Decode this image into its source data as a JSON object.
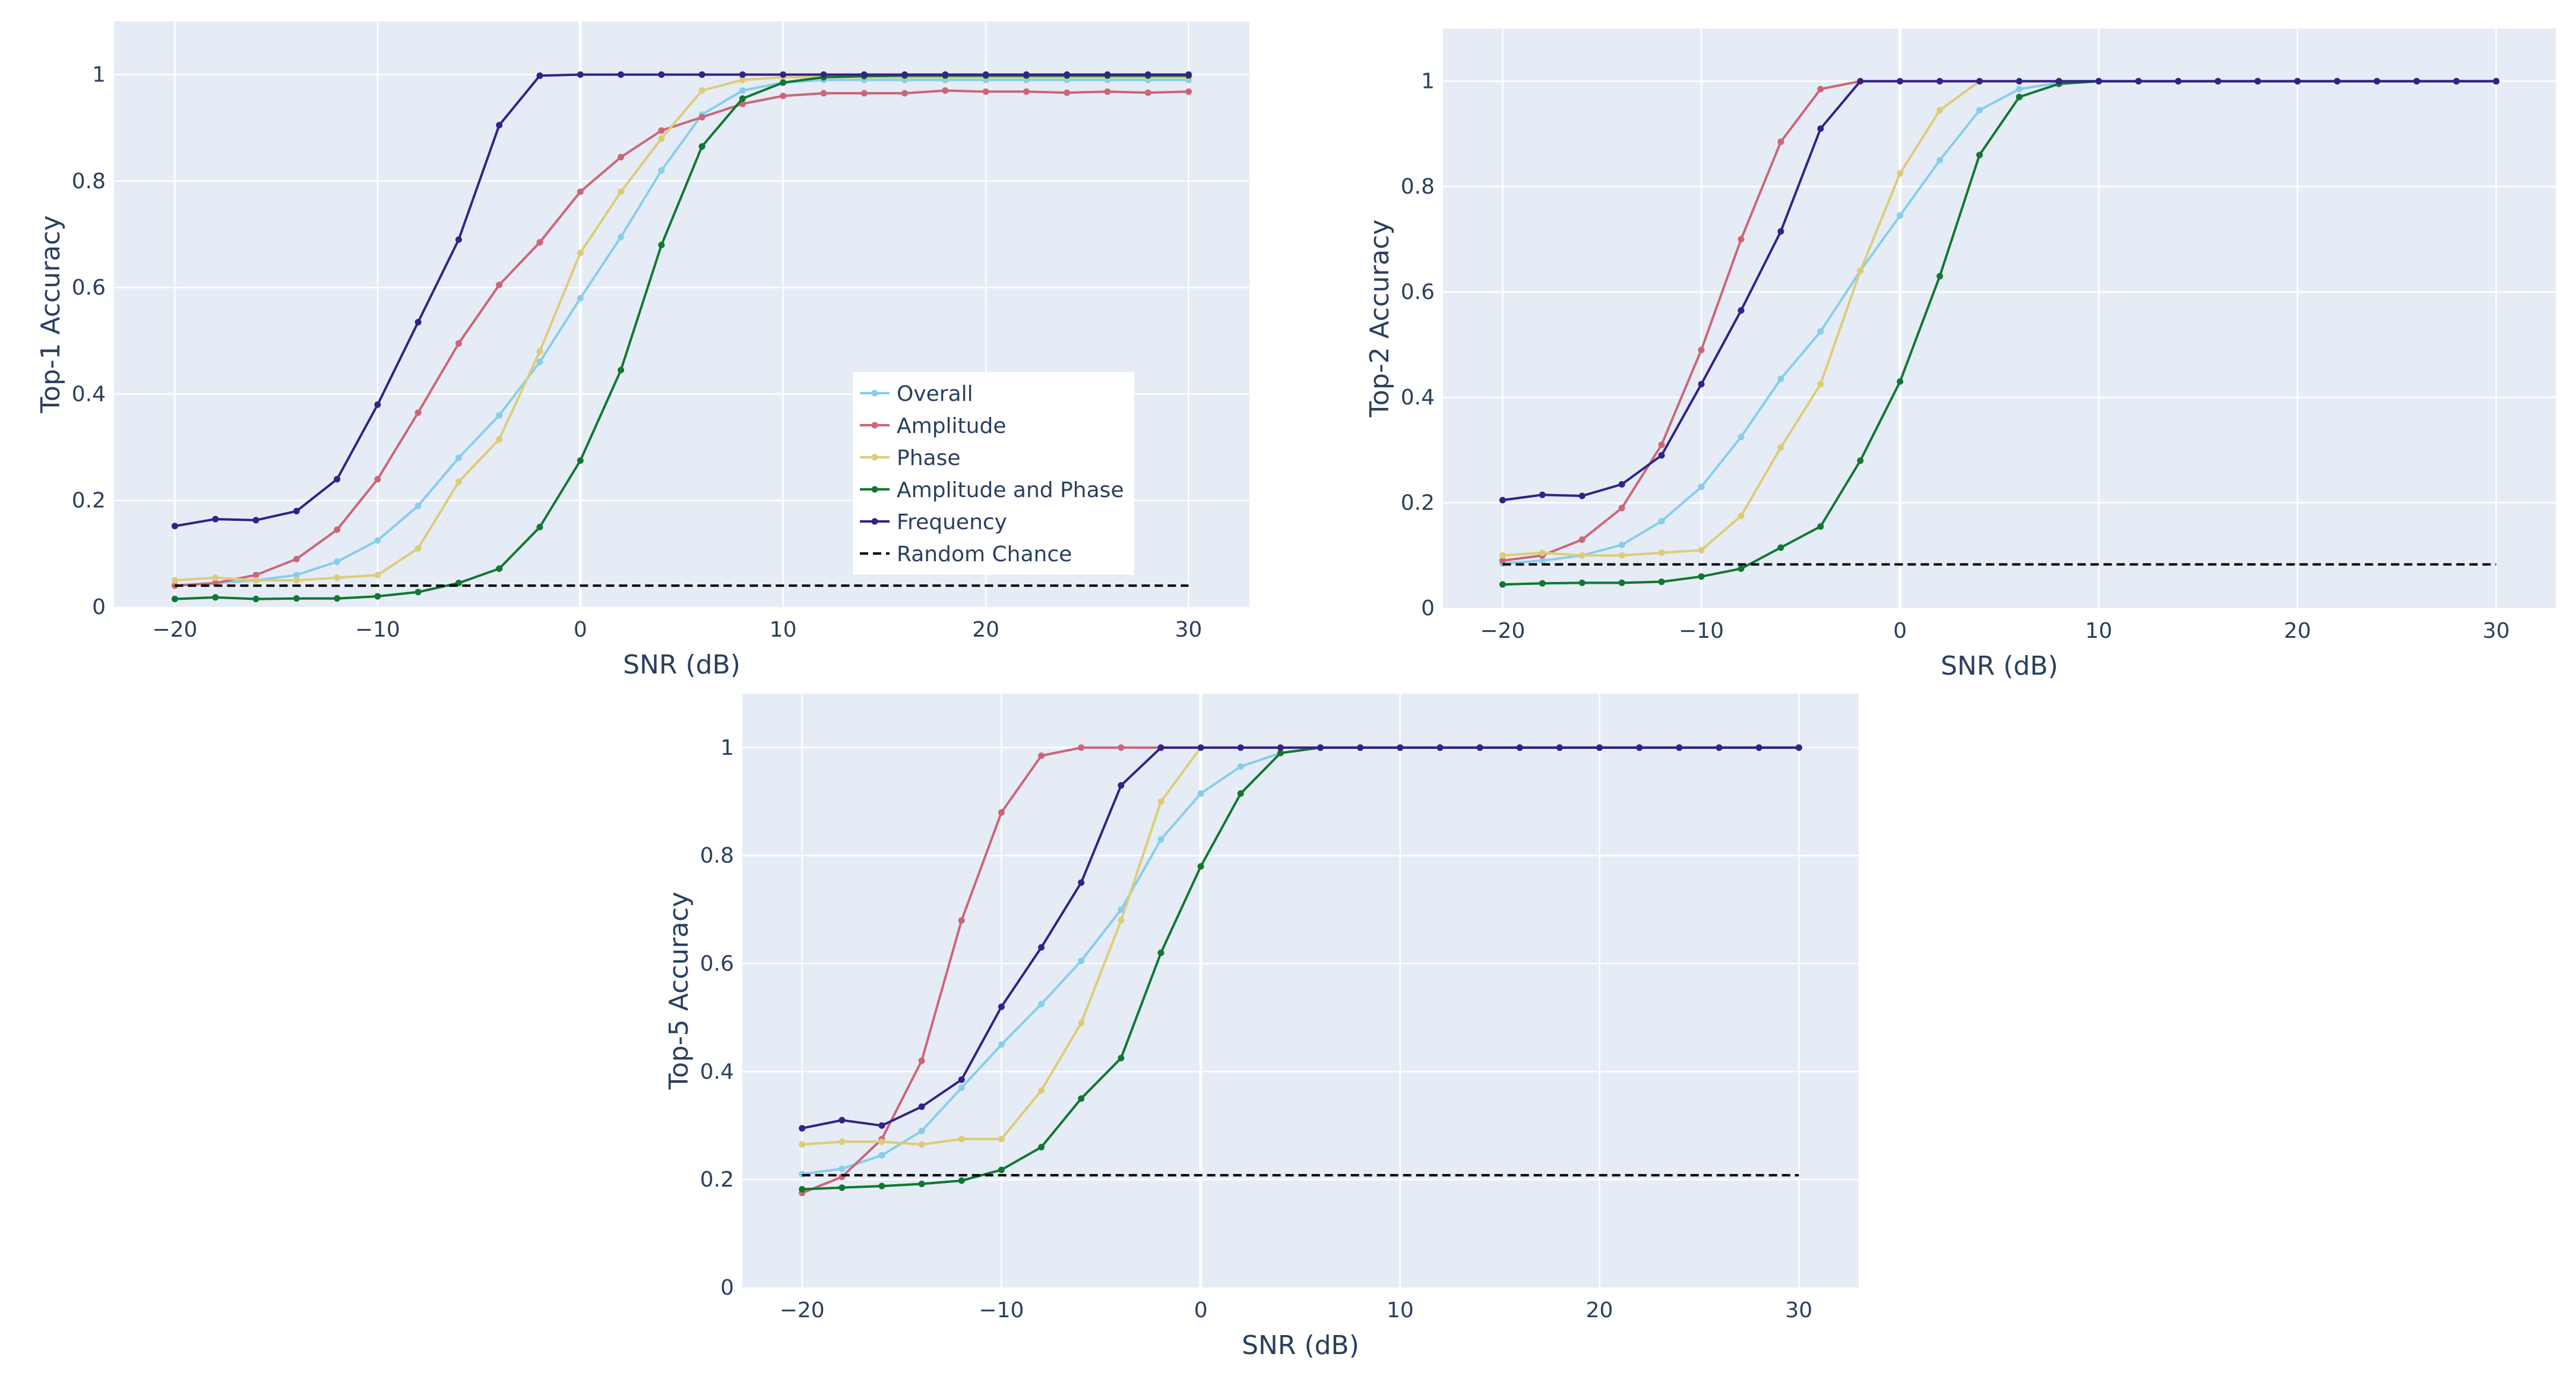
{
  "chart_data": [
    {
      "type": "line",
      "title": "",
      "xlabel": "SNR (dB)",
      "ylabel": "Top-1 Accuracy",
      "xlim": [
        -23,
        33
      ],
      "ylim": [
        0,
        1.1
      ],
      "xticks": [
        -20,
        -10,
        0,
        10,
        20,
        30
      ],
      "xtick_labels": [
        "−20",
        "−10",
        "0",
        "10",
        "20",
        "30"
      ],
      "yticks": [
        0,
        0.2,
        0.4,
        0.6,
        0.8,
        1
      ],
      "ytick_labels": [
        "0",
        "0.2",
        "0.4",
        "0.6",
        "0.8",
        "1"
      ],
      "x": [
        -20,
        -18,
        -16,
        -14,
        -12,
        -10,
        -8,
        -6,
        -4,
        -2,
        0,
        2,
        4,
        6,
        8,
        10,
        12,
        14,
        16,
        18,
        20,
        22,
        24,
        26,
        28,
        30
      ],
      "series": [
        {
          "name": "Overall",
          "color": "#87ceeb",
          "dash": "solid",
          "values": [
            0.04,
            0.045,
            0.05,
            0.06,
            0.085,
            0.125,
            0.19,
            0.28,
            0.36,
            0.46,
            0.58,
            0.695,
            0.82,
            0.925,
            0.97,
            0.985,
            0.99,
            0.99,
            0.99,
            0.99,
            0.99,
            0.99,
            0.99,
            0.99,
            0.99,
            0.99
          ]
        },
        {
          "name": "Amplitude",
          "color": "#cc6677",
          "dash": "solid",
          "values": [
            0.04,
            0.045,
            0.06,
            0.09,
            0.145,
            0.24,
            0.365,
            0.495,
            0.605,
            0.685,
            0.78,
            0.845,
            0.895,
            0.92,
            0.945,
            0.96,
            0.965,
            0.965,
            0.965,
            0.97,
            0.968,
            0.968,
            0.966,
            0.968,
            0.966,
            0.968
          ]
        },
        {
          "name": "Phase",
          "color": "#ddcc77",
          "dash": "solid",
          "values": [
            0.05,
            0.055,
            0.05,
            0.05,
            0.055,
            0.06,
            0.11,
            0.235,
            0.315,
            0.48,
            0.665,
            0.78,
            0.88,
            0.97,
            0.99,
            0.995,
            0.995,
            0.995,
            0.995,
            0.995,
            0.995,
            0.995,
            0.995,
            0.995,
            0.995,
            0.995
          ]
        },
        {
          "name": "Amplitude and Phase",
          "color": "#117733",
          "dash": "solid",
          "values": [
            0.015,
            0.018,
            0.015,
            0.016,
            0.016,
            0.02,
            0.028,
            0.045,
            0.072,
            0.15,
            0.275,
            0.445,
            0.68,
            0.865,
            0.955,
            0.985,
            0.995,
            0.997,
            0.998,
            0.998,
            0.998,
            0.998,
            0.998,
            0.998,
            0.998,
            0.998
          ]
        },
        {
          "name": "Frequency",
          "color": "#332288",
          "dash": "solid",
          "values": [
            0.152,
            0.165,
            0.163,
            0.18,
            0.24,
            0.38,
            0.535,
            0.69,
            0.905,
            0.998,
            1,
            1,
            1,
            1,
            1,
            1,
            1,
            1,
            1,
            1,
            1,
            1,
            1,
            1,
            1,
            1
          ]
        },
        {
          "name": "Random Chance",
          "color": "#000000",
          "dash": "dash",
          "values": [
            0.04,
            0.04,
            0.04,
            0.04,
            0.04,
            0.04,
            0.04,
            0.04,
            0.04,
            0.04,
            0.04,
            0.04,
            0.04,
            0.04,
            0.04,
            0.04,
            0.04,
            0.04,
            0.04,
            0.04,
            0.04,
            0.04,
            0.04,
            0.04,
            0.04,
            0.04
          ]
        }
      ],
      "legend": {
        "position": "bottom-right-inside",
        "entries": [
          "Overall",
          "Amplitude",
          "Phase",
          "Amplitude and Phase",
          "Frequency",
          "Random Chance"
        ]
      }
    },
    {
      "type": "line",
      "title": "",
      "xlabel": "SNR (dB)",
      "ylabel": "Top-2 Accuracy",
      "xlim": [
        -23,
        33
      ],
      "ylim": [
        0,
        1.1
      ],
      "xticks": [
        -20,
        -10,
        0,
        10,
        20,
        30
      ],
      "xtick_labels": [
        "−20",
        "−10",
        "0",
        "10",
        "20",
        "30"
      ],
      "yticks": [
        0,
        0.2,
        0.4,
        0.6,
        0.8,
        1
      ],
      "ytick_labels": [
        "0",
        "0.2",
        "0.4",
        "0.6",
        "0.8",
        "1"
      ],
      "x": [
        -20,
        -18,
        -16,
        -14,
        -12,
        -10,
        -8,
        -6,
        -4,
        -2,
        0,
        2,
        4,
        6,
        8,
        10,
        12,
        14,
        16,
        18,
        20,
        22,
        24,
        26,
        28,
        30
      ],
      "series": [
        {
          "name": "Overall",
          "color": "#87ceeb",
          "dash": "solid",
          "values": [
            0.085,
            0.09,
            0.1,
            0.12,
            0.165,
            0.23,
            0.325,
            0.435,
            0.525,
            0.64,
            0.745,
            0.85,
            0.945,
            0.985,
            0.997,
            1,
            1,
            1,
            1,
            1,
            1,
            1,
            1,
            1,
            1,
            1
          ]
        },
        {
          "name": "Amplitude",
          "color": "#cc6677",
          "dash": "solid",
          "values": [
            0.09,
            0.1,
            0.13,
            0.19,
            0.31,
            0.49,
            0.7,
            0.885,
            0.985,
            1,
            1,
            1,
            1,
            1,
            1,
            1,
            1,
            1,
            1,
            1,
            1,
            1,
            1,
            1,
            1,
            1
          ]
        },
        {
          "name": "Phase",
          "color": "#ddcc77",
          "dash": "solid",
          "values": [
            0.1,
            0.105,
            0.1,
            0.1,
            0.105,
            0.11,
            0.175,
            0.305,
            0.425,
            0.64,
            0.825,
            0.945,
            1,
            1,
            1,
            1,
            1,
            1,
            1,
            1,
            1,
            1,
            1,
            1,
            1,
            1
          ]
        },
        {
          "name": "Amplitude and Phase",
          "color": "#117733",
          "dash": "solid",
          "values": [
            0.045,
            0.047,
            0.048,
            0.048,
            0.05,
            0.06,
            0.075,
            0.115,
            0.155,
            0.28,
            0.43,
            0.63,
            0.86,
            0.97,
            0.995,
            1,
            1,
            1,
            1,
            1,
            1,
            1,
            1,
            1,
            1,
            1
          ]
        },
        {
          "name": "Frequency",
          "color": "#332288",
          "dash": "solid",
          "values": [
            0.205,
            0.215,
            0.213,
            0.235,
            0.29,
            0.425,
            0.565,
            0.715,
            0.91,
            1,
            1,
            1,
            1,
            1,
            1,
            1,
            1,
            1,
            1,
            1,
            1,
            1,
            1,
            1,
            1,
            1
          ]
        },
        {
          "name": "Random Chance",
          "color": "#000000",
          "dash": "dash",
          "values": [
            0.083,
            0.083,
            0.083,
            0.083,
            0.083,
            0.083,
            0.083,
            0.083,
            0.083,
            0.083,
            0.083,
            0.083,
            0.083,
            0.083,
            0.083,
            0.083,
            0.083,
            0.083,
            0.083,
            0.083,
            0.083,
            0.083,
            0.083,
            0.083,
            0.083,
            0.083
          ]
        }
      ]
    },
    {
      "type": "line",
      "title": "",
      "xlabel": "SNR (dB)",
      "ylabel": "Top-5 Accuracy",
      "xlim": [
        -23,
        33
      ],
      "ylim": [
        0,
        1.1
      ],
      "xticks": [
        -20,
        -10,
        0,
        10,
        20,
        30
      ],
      "xtick_labels": [
        "−20",
        "−10",
        "0",
        "10",
        "20",
        "30"
      ],
      "yticks": [
        0,
        0.2,
        0.4,
        0.6,
        0.8,
        1
      ],
      "ytick_labels": [
        "0",
        "0.2",
        "0.4",
        "0.6",
        "0.8",
        "1"
      ],
      "x": [
        -20,
        -18,
        -16,
        -14,
        -12,
        -10,
        -8,
        -6,
        -4,
        -2,
        0,
        2,
        4,
        6,
        8,
        10,
        12,
        14,
        16,
        18,
        20,
        22,
        24,
        26,
        28,
        30
      ],
      "series": [
        {
          "name": "Overall",
          "color": "#87ceeb",
          "dash": "solid",
          "values": [
            0.21,
            0.22,
            0.245,
            0.29,
            0.37,
            0.45,
            0.525,
            0.605,
            0.7,
            0.83,
            0.915,
            0.965,
            0.99,
            1,
            1,
            1,
            1,
            1,
            1,
            1,
            1,
            1,
            1,
            1,
            1,
            1
          ]
        },
        {
          "name": "Amplitude",
          "color": "#cc6677",
          "dash": "solid",
          "values": [
            0.175,
            0.205,
            0.275,
            0.42,
            0.68,
            0.88,
            0.985,
            1,
            1,
            1,
            1,
            1,
            1,
            1,
            1,
            1,
            1,
            1,
            1,
            1,
            1,
            1,
            1,
            1,
            1,
            1
          ]
        },
        {
          "name": "Phase",
          "color": "#ddcc77",
          "dash": "solid",
          "values": [
            0.265,
            0.27,
            0.27,
            0.265,
            0.275,
            0.275,
            0.365,
            0.49,
            0.68,
            0.9,
            1,
            1,
            1,
            1,
            1,
            1,
            1,
            1,
            1,
            1,
            1,
            1,
            1,
            1,
            1,
            1
          ]
        },
        {
          "name": "Amplitude and Phase",
          "color": "#117733",
          "dash": "solid",
          "values": [
            0.182,
            0.185,
            0.188,
            0.192,
            0.198,
            0.218,
            0.26,
            0.35,
            0.425,
            0.62,
            0.78,
            0.915,
            0.99,
            1,
            1,
            1,
            1,
            1,
            1,
            1,
            1,
            1,
            1,
            1,
            1,
            1
          ]
        },
        {
          "name": "Frequency",
          "color": "#332288",
          "dash": "solid",
          "values": [
            0.295,
            0.31,
            0.3,
            0.335,
            0.385,
            0.52,
            0.63,
            0.75,
            0.93,
            1,
            1,
            1,
            1,
            1,
            1,
            1,
            1,
            1,
            1,
            1,
            1,
            1,
            1,
            1,
            1,
            1
          ]
        },
        {
          "name": "Random Chance",
          "color": "#000000",
          "dash": "dash",
          "values": [
            0.208,
            0.208,
            0.208,
            0.208,
            0.208,
            0.208,
            0.208,
            0.208,
            0.208,
            0.208,
            0.208,
            0.208,
            0.208,
            0.208,
            0.208,
            0.208,
            0.208,
            0.208,
            0.208,
            0.208,
            0.208,
            0.208,
            0.208,
            0.208,
            0.208,
            0.208
          ]
        }
      ]
    }
  ]
}
